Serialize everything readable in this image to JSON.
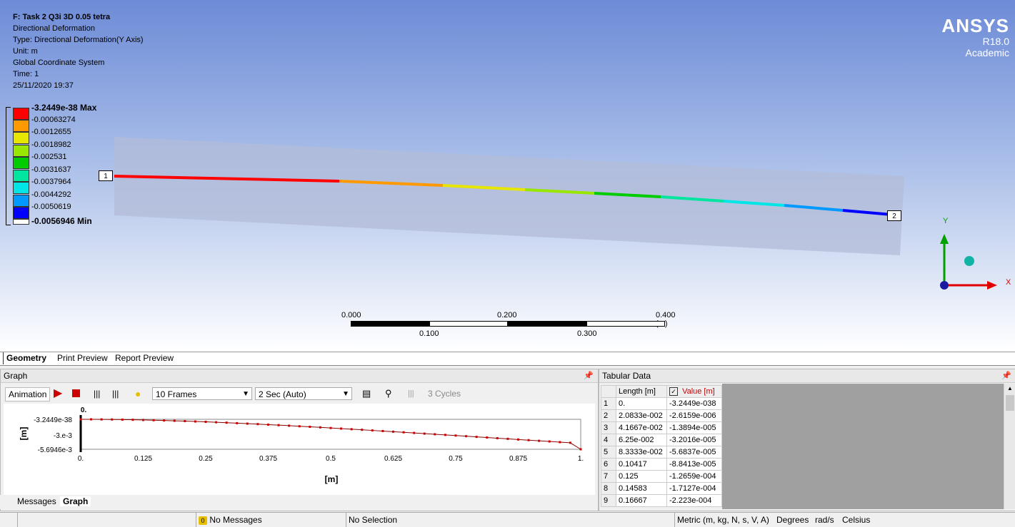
{
  "info": {
    "title": "F: Task 2 Q3i 3D 0.05 tetra",
    "lines": [
      "Directional Deformation",
      "Type: Directional Deformation(Y Axis)",
      "Unit: m",
      "Global Coordinate System",
      "Time: 1",
      "25/11/2020 19:37"
    ]
  },
  "logo": {
    "name": "ANSYS",
    "version": "R18.0",
    "edition": "Academic"
  },
  "legend": {
    "max": "-3.2449e-38 Max",
    "values": [
      "-0.00063274",
      "-0.0012655",
      "-0.0018982",
      "-0.002531",
      "-0.0031637",
      "-0.0037964",
      "-0.0044292",
      "-0.0050619"
    ],
    "min": "-0.0056946 Min",
    "colors": [
      "#ff0000",
      "#ff9900",
      "#e6e600",
      "#99e600",
      "#00cc00",
      "#00e6a0",
      "#00e6e6",
      "#0099ff",
      "#0000ff"
    ]
  },
  "probes": {
    "start": "1",
    "end": "2"
  },
  "scale": {
    "top": [
      "0.000",
      "0.200",
      "0.400 (m)"
    ],
    "bottom": [
      "0.100",
      "0.300"
    ]
  },
  "axes": {
    "y": "Y",
    "x": "X"
  },
  "tabs": {
    "geometry": "Geometry",
    "print": "Print Preview",
    "report": "Report Preview"
  },
  "graph": {
    "title": "Graph",
    "animation": "Animation",
    "frames": "10 Frames",
    "duration": "2 Sec (Auto)",
    "cycles": "3 Cycles",
    "ylabel": "[m]",
    "xlabel": "[m]",
    "top_marker": "0.",
    "bottom_tabs": {
      "messages": "Messages",
      "graph": "Graph"
    }
  },
  "chart_data": {
    "type": "line",
    "title": "",
    "xlabel": "[m]",
    "ylabel": "[m]",
    "xlim": [
      0,
      1
    ],
    "ylim": [
      -0.0056946,
      0
    ],
    "xticks": [
      "0.",
      "0.125",
      "0.25",
      "0.375",
      "0.5",
      "0.625",
      "0.75",
      "0.875",
      "1."
    ],
    "yticks": [
      "-3.2449e-38",
      "-3.e-3",
      "-5.6946e-3"
    ],
    "x": [
      0,
      0.02083,
      0.04167,
      0.0625,
      0.08333,
      0.10417,
      0.125,
      0.14583,
      0.16667,
      0.1875,
      0.20833,
      0.22917,
      0.25,
      0.27083,
      0.29167,
      0.3125,
      0.33333,
      0.35417,
      0.375,
      0.39583,
      0.41667,
      0.4375,
      0.45833,
      0.47917,
      0.5,
      0.52083,
      0.54167,
      0.5625,
      0.58333,
      0.60417,
      0.625,
      0.64583,
      0.66667,
      0.6875,
      0.70833,
      0.72917,
      0.75,
      0.77083,
      0.79167,
      0.8125,
      0.83333,
      0.85417,
      0.875,
      0.89583,
      0.91667,
      0.9375,
      0.95833,
      0.97917,
      1.0
    ],
    "values": [
      0,
      -2.6e-06,
      -1.39e-05,
      -3.2e-05,
      -5.68e-05,
      -8.84e-05,
      -0.000127,
      -0.000171,
      -0.000222,
      -0.00028,
      -0.00034,
      -0.00041,
      -0.00048,
      -0.00056,
      -0.00064,
      -0.00073,
      -0.00082,
      -0.00091,
      -0.00101,
      -0.00111,
      -0.00121,
      -0.00132,
      -0.00142,
      -0.00153,
      -0.00165,
      -0.00176,
      -0.00188,
      -0.00199,
      -0.00211,
      -0.00223,
      -0.00235,
      -0.00247,
      -0.00259,
      -0.00272,
      -0.00284,
      -0.00296,
      -0.00309,
      -0.00321,
      -0.00334,
      -0.00346,
      -0.00359,
      -0.00371,
      -0.00384,
      -0.00396,
      -0.00409,
      -0.00421,
      -0.00434,
      -0.00446,
      -0.0056946
    ],
    "grid": false,
    "legend": "none"
  },
  "tabular": {
    "title": "Tabular Data",
    "headers": [
      "Length [m]",
      "Value [m]"
    ],
    "rows": [
      [
        "1",
        "0.",
        "-3.2449e-038"
      ],
      [
        "2",
        "2.0833e-002",
        "-2.6159e-006"
      ],
      [
        "3",
        "4.1667e-002",
        "-1.3894e-005"
      ],
      [
        "4",
        "6.25e-002",
        "-3.2016e-005"
      ],
      [
        "5",
        "8.3333e-002",
        "-5.6837e-005"
      ],
      [
        "6",
        "0.10417",
        "-8.8413e-005"
      ],
      [
        "7",
        "0.125",
        "-1.2659e-004"
      ],
      [
        "8",
        "0.14583",
        "-1.7127e-004"
      ],
      [
        "9",
        "0.16667",
        "-2.223e-004"
      ]
    ]
  },
  "status": {
    "messages": "No Messages",
    "selection": "No Selection",
    "units": "Metric (m, kg, N, s, V, A)",
    "angle": "Degrees",
    "rate": "rad/s",
    "temp": "Celsius"
  }
}
